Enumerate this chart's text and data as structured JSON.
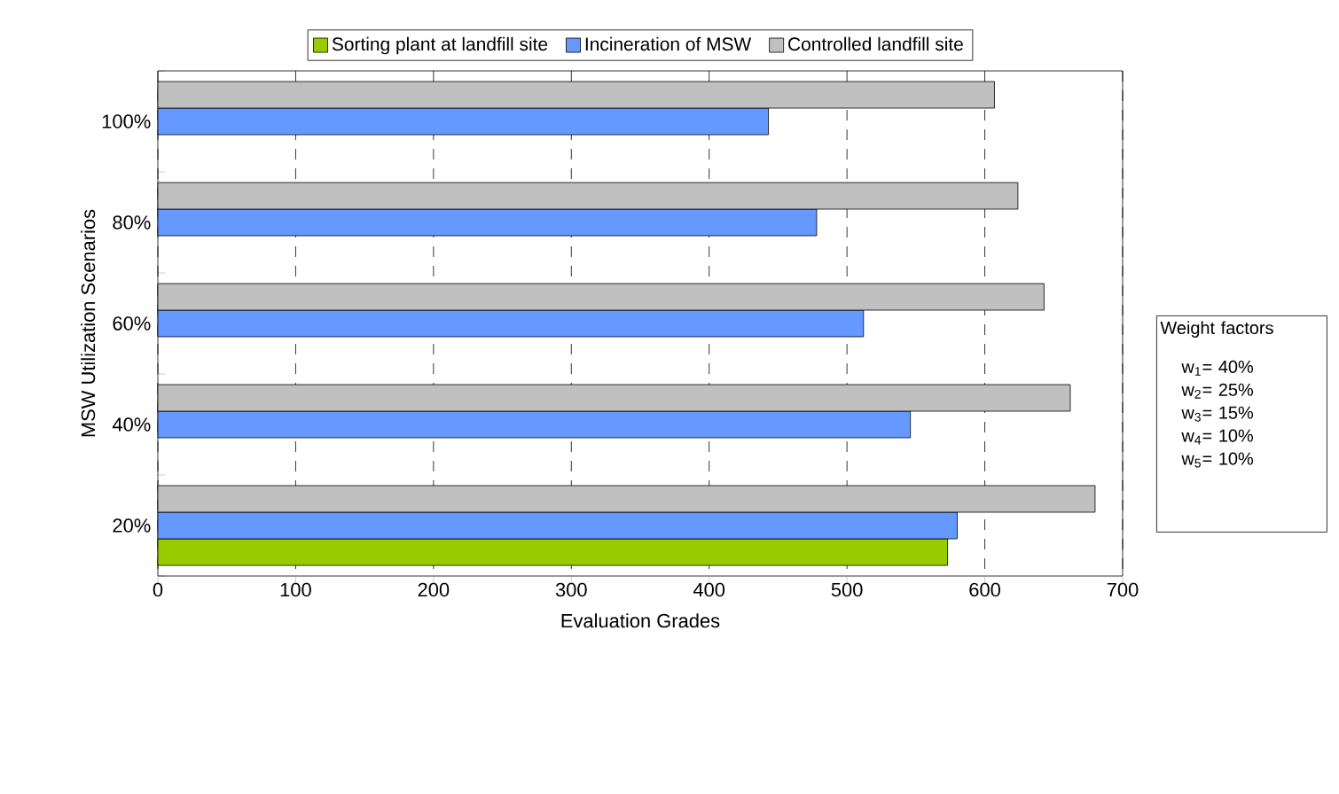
{
  "chart_data": {
    "type": "bar",
    "orientation": "horizontal",
    "xlabel": "Evaluation Grades",
    "ylabel": "MSW Utilization Scenarios",
    "categories": [
      "100%",
      "80%",
      "60%",
      "40%",
      "20%"
    ],
    "series": [
      {
        "name": "Sorting plant at landfill site",
        "color": "#99cc00",
        "values": [
          null,
          null,
          null,
          null,
          573
        ]
      },
      {
        "name": "Incineration of MSW",
        "color": "#6699ff",
        "values": [
          443,
          478,
          512,
          546,
          580
        ]
      },
      {
        "name": "Controlled landfill site",
        "color": "#c0c0c0",
        "values": [
          607,
          624,
          643,
          662,
          680
        ]
      }
    ],
    "xlim": [
      0,
      700
    ],
    "xticks": [
      0,
      100,
      200,
      300,
      400,
      500,
      600,
      700
    ],
    "grid": "x",
    "legend": "top",
    "annotations": [
      "Weight factors",
      "w$_{1}$= 40%",
      "w$_{2}$= 25%",
      "w$_{3}$= 15%",
      "w$_{4}$= 10%",
      "w$_{5}$= 10%"
    ]
  }
}
